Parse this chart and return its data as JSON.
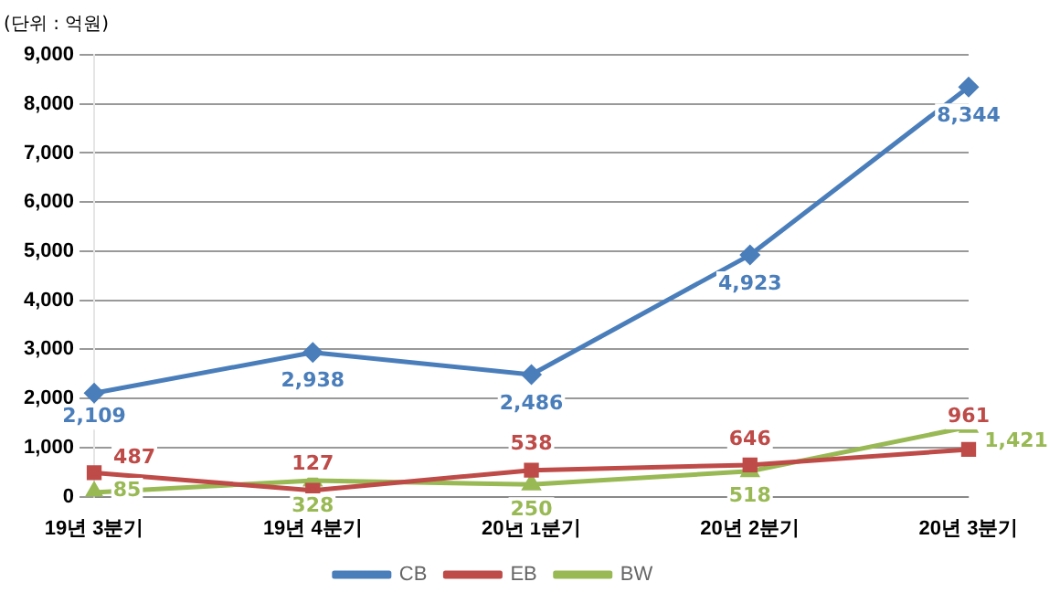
{
  "chart_data": {
    "type": "line",
    "ylabel": "(단위 : 억원)",
    "categories": [
      "19년 3분기",
      "19년 4분기",
      "20년 1분기",
      "20년 2분기",
      "20년 3분기"
    ],
    "series": [
      {
        "name": "CB",
        "color": "#4a7ebb",
        "marker": "diamond",
        "values": [
          2109,
          2938,
          2486,
          4923,
          8344
        ],
        "value_labels": [
          "2,109",
          "2,938",
          "2,486",
          "4,923",
          "8,344"
        ]
      },
      {
        "name": "EB",
        "color": "#be4b48",
        "marker": "square",
        "values": [
          487,
          127,
          538,
          646,
          961
        ],
        "value_labels": [
          "487",
          "127",
          "538",
          "646",
          "961"
        ]
      },
      {
        "name": "BW",
        "color": "#98b954",
        "marker": "triangle",
        "values": [
          85,
          328,
          250,
          518,
          1421
        ],
        "value_labels": [
          "85",
          "328",
          "250",
          "518",
          "1,421"
        ]
      }
    ],
    "ylim": [
      0,
      9000
    ],
    "yticks": [
      {
        "value": 0,
        "label": "0"
      },
      {
        "value": 1000,
        "label": "1,000"
      },
      {
        "value": 2000,
        "label": "2,000"
      },
      {
        "value": 3000,
        "label": "3,000"
      },
      {
        "value": 4000,
        "label": "4,000"
      },
      {
        "value": 5000,
        "label": "5,000"
      },
      {
        "value": 6000,
        "label": "6,000"
      },
      {
        "value": 7000,
        "label": "7,000"
      },
      {
        "value": 8000,
        "label": "8,000"
      },
      {
        "value": 9000,
        "label": "9,000"
      }
    ],
    "grid": "y",
    "legend": "bottom",
    "line_style": "solid"
  }
}
